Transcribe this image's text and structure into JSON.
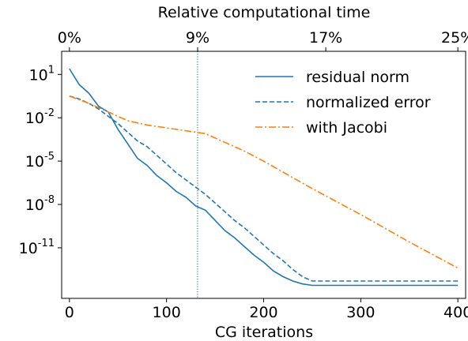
{
  "chart_data": {
    "type": "line",
    "xlabel": "CG iterations",
    "xlim": [
      -8,
      408
    ],
    "xticks": [
      0,
      100,
      200,
      300,
      400
    ],
    "ylabel": "",
    "yscale": "log",
    "ylim_log10": [
      -14.5,
      2.6
    ],
    "yticks": [
      {
        "base": "10",
        "exp": "1",
        "log10": 1
      },
      {
        "base": "10",
        "exp": "-2",
        "log10": -2
      },
      {
        "base": "10",
        "exp": "-5",
        "log10": -5
      },
      {
        "base": "10",
        "exp": "-8",
        "log10": -8
      },
      {
        "base": "10",
        "exp": "-11",
        "log10": -11
      }
    ],
    "top_axis": {
      "label": "Relative computational time",
      "ticks": [
        {
          "x": 0,
          "label": "0%"
        },
        {
          "x": 132,
          "label": "9%"
        },
        {
          "x": 264,
          "label": "17%"
        },
        {
          "x": 400,
          "label": "25%"
        }
      ]
    },
    "vline_x": 132,
    "legend_position": "top-right",
    "series": [
      {
        "name": "residual norm",
        "color": "#1f77b4",
        "style": "solid",
        "x": [
          0,
          10,
          20,
          30,
          40,
          50,
          60,
          70,
          80,
          90,
          100,
          110,
          120,
          130,
          140,
          150,
          160,
          170,
          180,
          190,
          200,
          210,
          220,
          230,
          240,
          250,
          260,
          270,
          280,
          300,
          350,
          400
        ],
        "y_log10": [
          1.4,
          0.3,
          -0.3,
          -1.2,
          -1.6,
          -2.8,
          -3.8,
          -4.8,
          -5.3,
          -6.0,
          -6.5,
          -7.1,
          -7.5,
          -8.1,
          -8.4,
          -9.1,
          -9.8,
          -10.3,
          -10.9,
          -11.5,
          -12.0,
          -12.6,
          -13.0,
          -13.3,
          -13.5,
          -13.6,
          -13.6,
          -13.6,
          -13.6,
          -13.6,
          -13.6,
          -13.6
        ]
      },
      {
        "name": "normalized error",
        "color": "#1f77b4",
        "style": "dashed",
        "x": [
          0,
          10,
          20,
          30,
          40,
          50,
          60,
          70,
          80,
          90,
          100,
          110,
          120,
          130,
          140,
          150,
          160,
          170,
          180,
          190,
          200,
          210,
          220,
          230,
          240,
          250,
          260,
          300,
          350,
          400
        ],
        "y_log10": [
          -0.5,
          -0.7,
          -1.0,
          -1.4,
          -1.9,
          -2.4,
          -3.0,
          -3.6,
          -4.0,
          -4.6,
          -5.2,
          -5.8,
          -6.3,
          -6.8,
          -7.3,
          -7.9,
          -8.5,
          -9.1,
          -9.6,
          -10.2,
          -10.8,
          -11.4,
          -11.9,
          -12.5,
          -13.0,
          -13.3,
          -13.3,
          -13.3,
          -13.3,
          -13.3
        ]
      },
      {
        "name": "with Jacobi",
        "color": "#ff7f0e",
        "style": "dashdot",
        "x": [
          0,
          20,
          40,
          60,
          80,
          100,
          120,
          140,
          160,
          180,
          200,
          250,
          300,
          350,
          400
        ],
        "y_log10": [
          -0.5,
          -1.0,
          -1.6,
          -2.2,
          -2.5,
          -2.7,
          -2.9,
          -3.1,
          -3.7,
          -4.3,
          -5.0,
          -6.9,
          -8.7,
          -10.6,
          -12.4
        ]
      }
    ]
  }
}
